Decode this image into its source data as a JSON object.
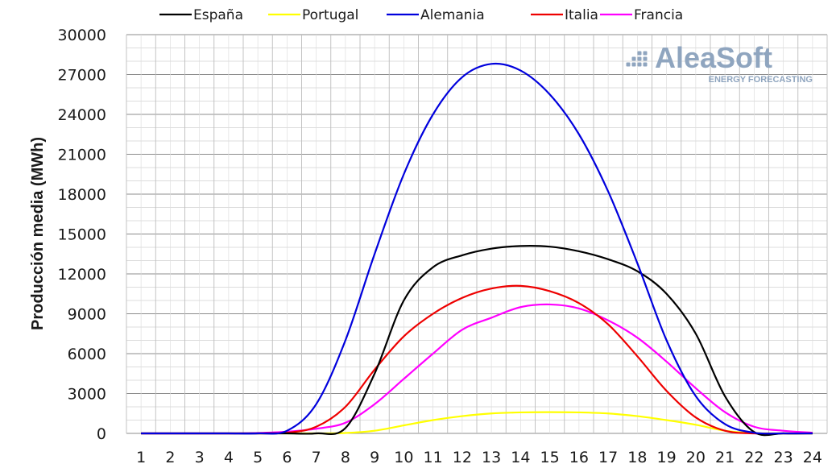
{
  "chart_data": {
    "type": "line",
    "ylabel": "Producción media (MWh)",
    "xlabel": "",
    "ylim": [
      0,
      30000
    ],
    "yticks": [
      0,
      3000,
      6000,
      9000,
      12000,
      15000,
      18000,
      21000,
      24000,
      27000,
      30000
    ],
    "x": [
      1,
      2,
      3,
      4,
      5,
      6,
      7,
      8,
      9,
      10,
      11,
      12,
      13,
      14,
      15,
      16,
      17,
      18,
      19,
      20,
      21,
      22,
      23,
      24
    ],
    "grid": true,
    "legend_position": "top",
    "series": [
      {
        "name": "España",
        "color": "#000000",
        "values": [
          0,
          0,
          0,
          0,
          0,
          0,
          0,
          400,
          4500,
          10000,
          12500,
          13400,
          13900,
          14100,
          14050,
          13700,
          13100,
          12200,
          10500,
          7500,
          2800,
          100,
          0,
          0
        ]
      },
      {
        "name": "Portugal",
        "color": "#ffff00",
        "values": [
          0,
          0,
          0,
          0,
          0,
          0,
          0,
          30,
          200,
          600,
          1000,
          1300,
          1500,
          1580,
          1600,
          1580,
          1500,
          1300,
          1000,
          650,
          200,
          20,
          0,
          0
        ]
      },
      {
        "name": "Alemania",
        "color": "#0000dd",
        "values": [
          0,
          0,
          0,
          0,
          0,
          200,
          2200,
          7000,
          13500,
          19500,
          24000,
          26800,
          27800,
          27300,
          25500,
          22500,
          18200,
          12800,
          7000,
          2800,
          700,
          50,
          0,
          0
        ]
      },
      {
        "name": "Italia",
        "color": "#ee0000",
        "values": [
          0,
          0,
          0,
          0,
          0,
          50,
          500,
          2000,
          4800,
          7300,
          9000,
          10200,
          10900,
          11100,
          10700,
          9800,
          8200,
          5800,
          3200,
          1200,
          200,
          0,
          0,
          0
        ]
      },
      {
        "name": "Francia",
        "color": "#ff00ff",
        "values": [
          0,
          0,
          0,
          0,
          30,
          130,
          350,
          800,
          2200,
          4100,
          6000,
          7800,
          8700,
          9500,
          9700,
          9400,
          8500,
          7200,
          5400,
          3400,
          1600,
          500,
          200,
          50
        ]
      }
    ]
  },
  "logo": {
    "text": "AleaSoft",
    "subtitle": "ENERGY FORECASTING",
    "color": "#8fa5bf"
  }
}
